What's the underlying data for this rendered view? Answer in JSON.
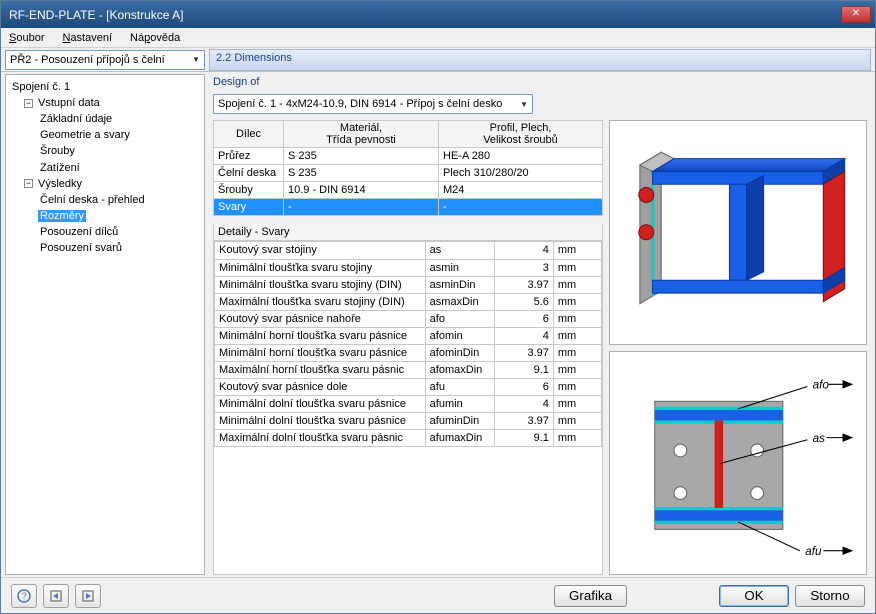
{
  "window": {
    "title": "RF-END-PLATE - [Konstrukce A]",
    "close_icon": "✕"
  },
  "menu": {
    "soubor": "Soubor",
    "nastaveni": "Nastavení",
    "napoveda": "Nápověda"
  },
  "left_dropdown": "PŘ2 - Posouzení přípojů s čelní",
  "panel_title": "2.2 Dimensions",
  "design_of_label": "Design of",
  "design_combo": "Spojení č. 1 - 4xM24-10.9, DIN 6914 - Přípoj s čelní desko",
  "tree": {
    "root": "Spojení č. 1",
    "vstupni": "Vstupní data",
    "zakladni": "Základní údaje",
    "geometrie": "Geometrie a svary",
    "srouby": "Šrouby",
    "zatizeni": "Zatížení",
    "vysledky": "Výsledky",
    "celni": "Čelní deska - přehled",
    "rozmery": "Rozměry",
    "pos_dilcu": "Posouzení dílců",
    "pos_svaru": "Posouzení svarů"
  },
  "table1": {
    "headers": {
      "dilec": "Dílec",
      "material": "Materiál,\nTřída pevnosti",
      "profil": "Profil, Plech,\nVelikost šroubů"
    },
    "rows": [
      {
        "d": "Průřez",
        "m": "S 235",
        "p": "HE-A 280"
      },
      {
        "d": "Čelní deska",
        "m": "S 235",
        "p": "Plech 310/280/20"
      },
      {
        "d": "Šrouby",
        "m": "10.9 - DIN 6914",
        "p": "M24"
      },
      {
        "d": "Svary",
        "m": "-",
        "p": "-"
      }
    ]
  },
  "details_header": "Detaily  -  Svary",
  "table2": {
    "rows": [
      {
        "l": "Koutový svar stojiny",
        "s": "as",
        "v": "4",
        "u": "mm"
      },
      {
        "l": "Minimální tloušťka svaru stojiny",
        "s": "asmin",
        "v": "3",
        "u": "mm"
      },
      {
        "l": "Minimální tloušťka svaru stojiny (DIN)",
        "s": "asminDin",
        "v": "3.97",
        "u": "mm"
      },
      {
        "l": "Maximální tloušťka svaru stojiny (DIN)",
        "s": "asmaxDin",
        "v": "5.6",
        "u": "mm"
      },
      {
        "l": "Koutový svar pásnice nahoře",
        "s": "afo",
        "v": "6",
        "u": "mm"
      },
      {
        "l": "Minimální horní tloušťka svaru pásnice",
        "s": "afomin",
        "v": "4",
        "u": "mm"
      },
      {
        "l": "Minimální horní tloušťka svaru pásnice",
        "s": "afominDin",
        "v": "3.97",
        "u": "mm"
      },
      {
        "l": "Maximální horní tloušťka svaru pásnic",
        "s": "afomaxDin",
        "v": "9.1",
        "u": "mm"
      },
      {
        "l": "Koutový svar pásnice dole",
        "s": "afu",
        "v": "6",
        "u": "mm"
      },
      {
        "l": "Minimální dolní tloušťka svaru pásnice",
        "s": "afumin",
        "v": "4",
        "u": "mm"
      },
      {
        "l": "Minimální dolní tloušťka svaru pásnice",
        "s": "afuminDin",
        "v": "3.97",
        "u": "mm"
      },
      {
        "l": "Maximální dolní tloušťka svaru pásnic",
        "s": "afumaxDin",
        "v": "9.1",
        "u": "mm"
      }
    ]
  },
  "diagram_labels": {
    "afo": "afo",
    "as": "as",
    "afu": "afu"
  },
  "diagram_colors": {
    "beam_fill": "#1860e8",
    "beam_edge": "#0838a0",
    "plate": "#a0a0a0",
    "bolt": "#d02020",
    "weld": "#00d0d0",
    "bolt_hole": "#ffffff"
  },
  "footer": {
    "help": "?",
    "grafika": "Grafika",
    "ok": "OK",
    "storno": "Storno"
  }
}
